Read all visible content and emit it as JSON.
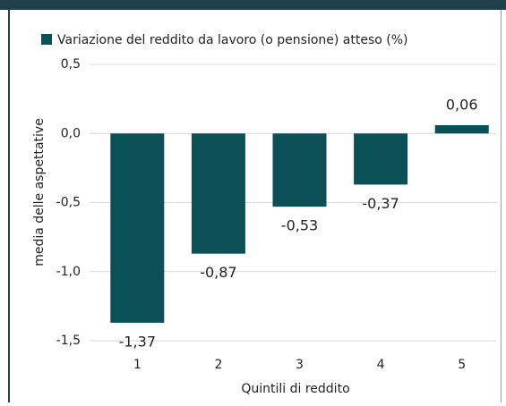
{
  "chart_data": {
    "type": "bar",
    "legend_label": "Variazione del reddito da lavoro (o pensione) atteso (%)",
    "y_label": "media delle aspettative",
    "x_label": "Quintili di reddito",
    "categories": [
      "1",
      "2",
      "3",
      "4",
      "5"
    ],
    "values": [
      -1.37,
      -0.87,
      -0.53,
      -0.37,
      0.06
    ],
    "value_labels": [
      "-1,37",
      "-0,87",
      "-0,53",
      "-0,37",
      "0,06"
    ],
    "color": "#0b4f57",
    "ylim": [
      -1.5,
      0.5
    ],
    "yticks": [
      {
        "value": 0.5,
        "label": "0,5"
      },
      {
        "value": 0.0,
        "label": "0,0"
      },
      {
        "value": -0.5,
        "label": "-0,5"
      },
      {
        "value": -1.0,
        "label": "-1,0"
      },
      {
        "value": -1.5,
        "label": "-1,5"
      }
    ],
    "grid": true
  }
}
